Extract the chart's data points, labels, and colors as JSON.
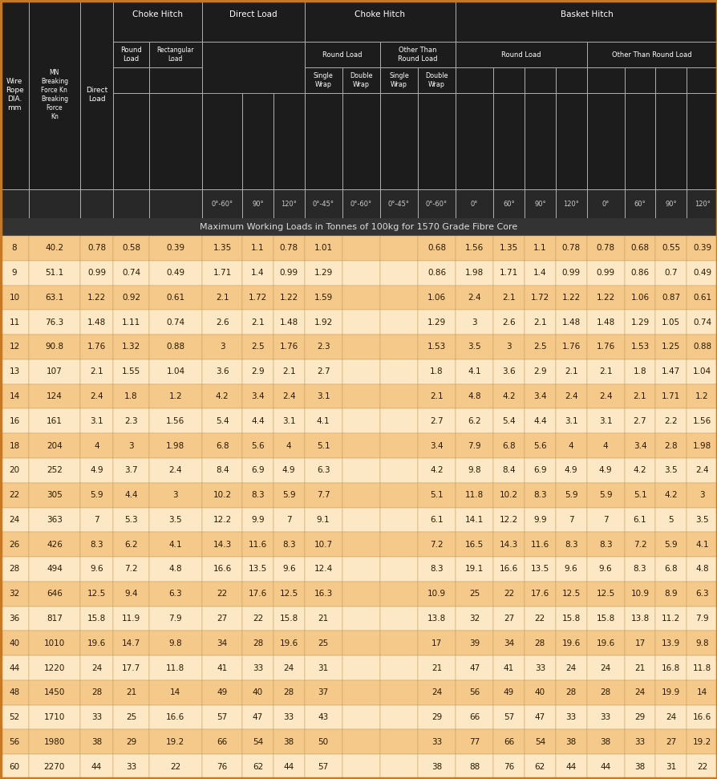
{
  "subtitle": "Maximum Working Loads in Tonnes of 100kg for 1570 Grade Fibre Core",
  "dark_bg": "#1c1c1c",
  "subtitle_bg": "#333333",
  "row_colors": [
    "#f5c98a",
    "#fde8c5"
  ],
  "border_light": "#bbbbbb",
  "border_dark": "#888888",
  "text_white": "#ffffff",
  "text_dark": "#2a1800",
  "text_gray": "#cccccc",
  "outer_border": "#c87820",
  "rows": [
    [
      8,
      40.2,
      0.78,
      0.58,
      0.39,
      1.35,
      1.1,
      0.78,
      1.01,
      0.68,
      1.56,
      1.35,
      1.1,
      0.78,
      0.78,
      0.68,
      0.55,
      0.39
    ],
    [
      9,
      51.1,
      0.99,
      0.74,
      0.49,
      1.71,
      1.4,
      0.99,
      1.29,
      0.86,
      1.98,
      1.71,
      1.4,
      0.99,
      0.99,
      0.86,
      0.7,
      0.49
    ],
    [
      10,
      63.1,
      1.22,
      0.92,
      0.61,
      2.1,
      1.72,
      1.22,
      1.59,
      1.06,
      2.4,
      2.1,
      1.72,
      1.22,
      1.22,
      1.06,
      0.87,
      0.61
    ],
    [
      11,
      76.3,
      1.48,
      1.11,
      0.74,
      2.6,
      2.1,
      1.48,
      1.92,
      1.29,
      3,
      2.6,
      2.1,
      1.48,
      1.48,
      1.29,
      1.05,
      0.74
    ],
    [
      12,
      90.8,
      1.76,
      1.32,
      0.88,
      3,
      2.5,
      1.76,
      2.3,
      1.53,
      3.5,
      3,
      2.5,
      1.76,
      1.76,
      1.53,
      1.25,
      0.88
    ],
    [
      13,
      107.0,
      2.1,
      1.55,
      1.04,
      3.6,
      2.9,
      2.1,
      2.7,
      1.8,
      4.1,
      3.6,
      2.9,
      2.1,
      2.1,
      1.8,
      1.47,
      1.04
    ],
    [
      14,
      124.0,
      2.4,
      1.8,
      1.2,
      4.2,
      3.4,
      2.4,
      3.1,
      2.1,
      4.8,
      4.2,
      3.4,
      2.4,
      2.4,
      2.1,
      1.71,
      1.2
    ],
    [
      16,
      161.0,
      3.1,
      2.3,
      1.56,
      5.4,
      4.4,
      3.1,
      4.1,
      2.7,
      6.2,
      5.4,
      4.4,
      3.1,
      3.1,
      2.7,
      2.2,
      1.56
    ],
    [
      18,
      204.0,
      4,
      3,
      1.98,
      6.8,
      5.6,
      4,
      5.1,
      3.4,
      7.9,
      6.8,
      5.6,
      4,
      4,
      3.4,
      2.8,
      1.98
    ],
    [
      20,
      252.0,
      4.9,
      3.7,
      2.4,
      8.4,
      6.9,
      4.9,
      6.3,
      4.2,
      9.8,
      8.4,
      6.9,
      4.9,
      4.9,
      4.2,
      3.5,
      2.4
    ],
    [
      22,
      305.0,
      5.9,
      4.4,
      3,
      10.2,
      8.3,
      5.9,
      7.7,
      5.1,
      11.8,
      10.2,
      8.3,
      5.9,
      5.9,
      5.1,
      4.2,
      3
    ],
    [
      24,
      363.0,
      7,
      5.3,
      3.5,
      12.2,
      9.9,
      7,
      9.1,
      6.1,
      14.1,
      12.2,
      9.9,
      7,
      7,
      6.1,
      5,
      3.5
    ],
    [
      26,
      426.0,
      8.3,
      6.2,
      4.1,
      14.3,
      11.6,
      8.3,
      10.7,
      7.2,
      16.5,
      14.3,
      11.6,
      8.3,
      8.3,
      7.2,
      5.9,
      4.1
    ],
    [
      28,
      494.0,
      9.6,
      7.2,
      4.8,
      16.6,
      13.5,
      9.6,
      12.4,
      8.3,
      19.1,
      16.6,
      13.5,
      9.6,
      9.6,
      8.3,
      6.8,
      4.8
    ],
    [
      32,
      646.0,
      12.5,
      9.4,
      6.3,
      22,
      17.6,
      12.5,
      16.3,
      10.9,
      25,
      22,
      17.6,
      12.5,
      12.5,
      10.9,
      8.9,
      6.3
    ],
    [
      36,
      817.0,
      15.8,
      11.9,
      7.9,
      27,
      22,
      15.8,
      21,
      13.8,
      32,
      27,
      22,
      15.8,
      15.8,
      13.8,
      11.2,
      7.9
    ],
    [
      40,
      1010.0,
      19.6,
      14.7,
      9.8,
      34,
      28,
      19.6,
      25,
      17,
      39,
      34,
      28,
      19.6,
      19.6,
      17,
      13.9,
      9.8
    ],
    [
      44,
      1220.0,
      24,
      17.7,
      11.8,
      41,
      33,
      24,
      31,
      21,
      47,
      41,
      33,
      24,
      24,
      21,
      16.8,
      11.8
    ],
    [
      48,
      1450.0,
      28,
      21,
      14,
      49,
      40,
      28,
      37,
      24,
      56,
      49,
      40,
      28,
      28,
      24,
      19.9,
      14
    ],
    [
      52,
      1710.0,
      33,
      25,
      16.6,
      57,
      47,
      33,
      43,
      29,
      66,
      57,
      47,
      33,
      33,
      29,
      24,
      16.6
    ],
    [
      56,
      1980.0,
      38,
      29,
      19.2,
      66,
      54,
      38,
      50,
      33,
      77,
      66,
      54,
      38,
      38,
      33,
      27,
      19.2
    ],
    [
      60,
      2270.0,
      44,
      33,
      22,
      76,
      62,
      44,
      57,
      38,
      88,
      76,
      62,
      44,
      44,
      38,
      31,
      22
    ]
  ]
}
